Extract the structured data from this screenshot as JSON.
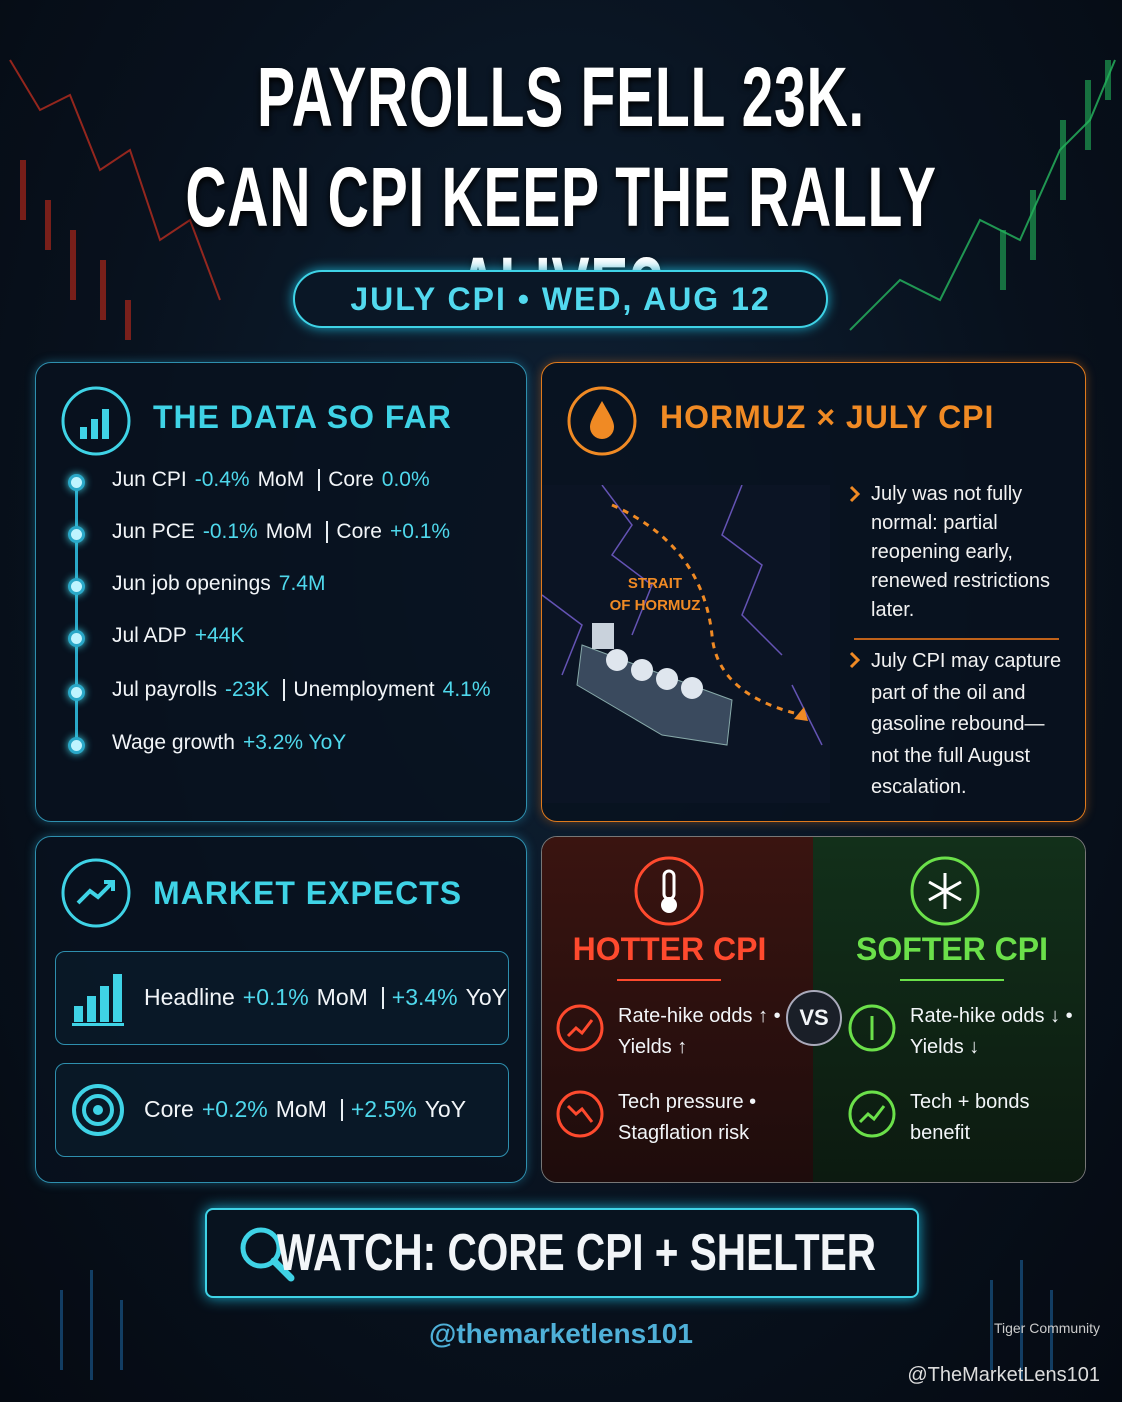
{
  "header": {
    "title_lines": [
      "PAYROLLS FELL 23K.",
      "CAN CPI KEEP THE RALLY ALIVE?"
    ],
    "subtitle": "JULY CPI • WED, AUG 12"
  },
  "data_so_far": {
    "title": "THE DATA SO FAR",
    "items": [
      {
        "label": "Jun CPI",
        "value": "-0.4%",
        "unit": "MoM",
        "label2": "Core",
        "value2": "0.0%"
      },
      {
        "label": "Jun PCE",
        "value": "-0.1%",
        "unit": "MoM",
        "label2": "Core",
        "value2": "+0.1%"
      },
      {
        "label": "Jun job openings",
        "value": "7.4M"
      },
      {
        "label": "Jul ADP",
        "value": "+44K"
      },
      {
        "label": "Jul payrolls",
        "value": "-23K",
        "label2": "Unemployment",
        "value2": "4.1%"
      },
      {
        "label": "Wage growth",
        "value": "+3.2% YoY"
      }
    ]
  },
  "hormuz": {
    "title": "HORMUZ × JULY CPI",
    "map_label": [
      "STRAIT",
      "OF HORMUZ"
    ],
    "bullets": [
      [
        "July was not fully",
        "normal: partial",
        "reopening early,",
        "renewed restrictions",
        "later."
      ],
      [
        "July CPI may capture",
        "part of the oil and",
        "gasoline rebound—",
        "not the full August",
        "escalation."
      ]
    ]
  },
  "market_expects": {
    "title": "MARKET EXPECTS",
    "rows": [
      {
        "label": "Headline",
        "value": "+0.1%",
        "unit": "MoM",
        "value2": "+3.4%",
        "unit2": "YoY"
      },
      {
        "label": "Core",
        "value": "+0.2%",
        "unit": "MoM",
        "value2": "+2.5%",
        "unit2": "YoY"
      }
    ]
  },
  "scenarios": {
    "vs": "VS",
    "hotter": {
      "title": "HOTTER CPI",
      "items": [
        [
          "Rate-hike odds ↑ •",
          "Yields ↑"
        ],
        [
          "Tech pressure •",
          "Stagflation risk"
        ]
      ]
    },
    "softer": {
      "title": "SOFTER CPI",
      "items": [
        [
          "Rate-hike odds ↓ •",
          "Yields ↓"
        ],
        [
          "Tech + bonds",
          "benefit"
        ]
      ]
    }
  },
  "watch": "WATCH: CORE CPI + SHELTER",
  "handle": "@themarketlens101",
  "watermark": {
    "brand": "Tiger Community",
    "handle": "@TheMarketLens101"
  }
}
